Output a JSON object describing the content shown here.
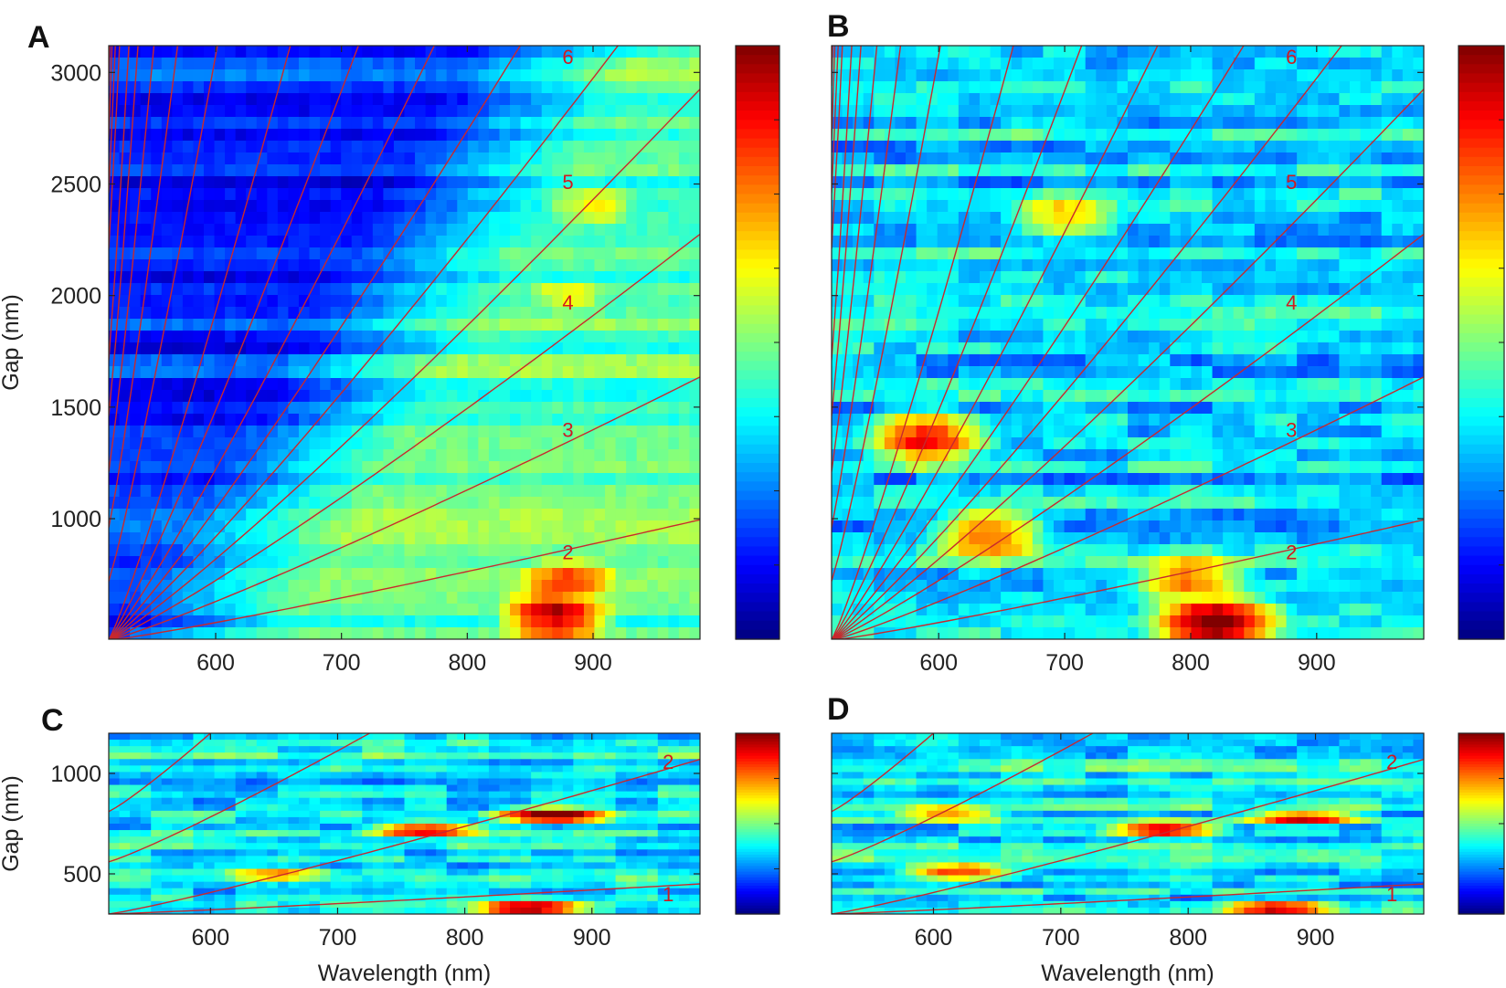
{
  "chart_data": [
    {
      "type": "heatmap",
      "panel_label": "A",
      "xlabel": "",
      "ylabel": "Gap (nm)",
      "xlim": [
        515,
        985
      ],
      "ylim": [
        460,
        3120
      ],
      "xticks": [
        600,
        700,
        800,
        900
      ],
      "yticks": [
        1000,
        1500,
        2000,
        2500,
        3000
      ],
      "colormap": "jet",
      "mode_labels": [
        {
          "label": "2",
          "x": 880,
          "y": 850
        },
        {
          "label": "3",
          "x": 880,
          "y": 1400
        },
        {
          "label": "4",
          "x": 880,
          "y": 1970
        },
        {
          "label": "5",
          "x": 880,
          "y": 2510
        },
        {
          "label": "6",
          "x": 880,
          "y": 3070
        }
      ],
      "hotspots": [
        {
          "x": 870,
          "y": 560,
          "value": 0.95
        },
        {
          "x": 880,
          "y": 720,
          "value": 0.75
        },
        {
          "x": 900,
          "y": 2400,
          "value": 0.65
        },
        {
          "x": 880,
          "y": 2000,
          "value": 0.6
        }
      ]
    },
    {
      "type": "heatmap",
      "panel_label": "B",
      "xlabel": "",
      "ylabel": "",
      "xlim": [
        515,
        985
      ],
      "ylim": [
        460,
        3120
      ],
      "xticks": [
        600,
        700,
        800,
        900
      ],
      "yticks": [
        1000,
        1500,
        2000,
        2500,
        3000
      ],
      "colormap": "jet",
      "mode_labels": [
        {
          "label": "2",
          "x": 880,
          "y": 850
        },
        {
          "label": "3",
          "x": 880,
          "y": 1400
        },
        {
          "label": "4",
          "x": 880,
          "y": 1970
        },
        {
          "label": "5",
          "x": 880,
          "y": 2510
        },
        {
          "label": "6",
          "x": 880,
          "y": 3070
        }
      ],
      "hotspots": [
        {
          "x": 820,
          "y": 540,
          "value": 0.95
        },
        {
          "x": 800,
          "y": 720,
          "value": 0.75
        },
        {
          "x": 590,
          "y": 1360,
          "value": 0.85
        },
        {
          "x": 640,
          "y": 930,
          "value": 0.8
        },
        {
          "x": 700,
          "y": 2350,
          "value": 0.65
        }
      ]
    },
    {
      "type": "heatmap",
      "panel_label": "C",
      "xlabel": "Wavelength (nm)",
      "ylabel": "Gap (nm)",
      "xlim": [
        520,
        985
      ],
      "ylim": [
        300,
        1200
      ],
      "xticks": [
        600,
        700,
        800,
        900
      ],
      "yticks": [
        500,
        1000
      ],
      "colormap": "jet",
      "mode_labels": [
        {
          "label": "2",
          "x": 960,
          "y": 1060
        },
        {
          "label": "1",
          "x": 960,
          "y": 400
        }
      ],
      "hotspots": [
        {
          "x": 870,
          "y": 790,
          "value": 1.0
        },
        {
          "x": 770,
          "y": 720,
          "value": 0.9
        },
        {
          "x": 850,
          "y": 330,
          "value": 0.95
        },
        {
          "x": 650,
          "y": 500,
          "value": 0.7
        }
      ]
    },
    {
      "type": "heatmap",
      "panel_label": "D",
      "xlabel": "Wavelength (nm)",
      "ylabel": "",
      "xlim": [
        520,
        985
      ],
      "ylim": [
        300,
        1200
      ],
      "xticks": [
        600,
        700,
        800,
        900
      ],
      "yticks": [
        500,
        1000
      ],
      "colormap": "jet",
      "mode_labels": [
        {
          "label": "2",
          "x": 960,
          "y": 1060
        },
        {
          "label": "1",
          "x": 960,
          "y": 400
        }
      ],
      "hotspots": [
        {
          "x": 780,
          "y": 720,
          "value": 0.95
        },
        {
          "x": 890,
          "y": 780,
          "value": 0.85
        },
        {
          "x": 620,
          "y": 510,
          "value": 0.85
        },
        {
          "x": 870,
          "y": 330,
          "value": 0.9
        },
        {
          "x": 610,
          "y": 800,
          "value": 0.75
        }
      ]
    }
  ]
}
